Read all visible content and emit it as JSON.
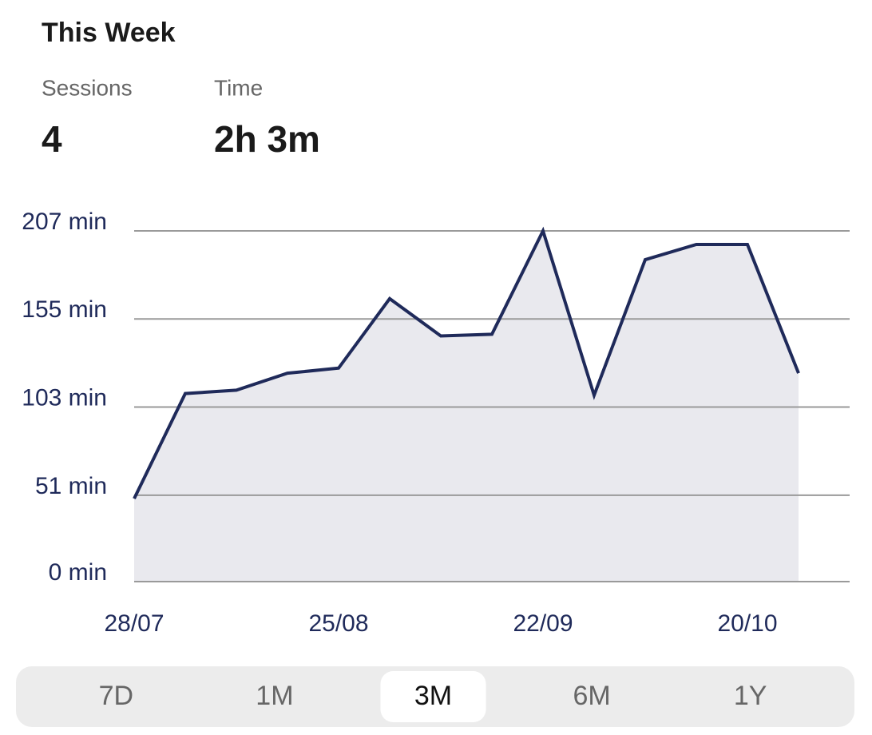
{
  "header": {
    "title": "This Week"
  },
  "stats": [
    {
      "label": "Sessions",
      "value": 4
    },
    {
      "label": "Time",
      "value": "2h 3m"
    }
  ],
  "chart_data": {
    "type": "area",
    "categories": [
      "28/07",
      null,
      null,
      null,
      "25/08",
      null,
      null,
      null,
      "22/09",
      null,
      null,
      null,
      "20/10",
      null
    ],
    "values": [
      49,
      111,
      113,
      123,
      126,
      167,
      145,
      146,
      207,
      110,
      190,
      199,
      199,
      123
    ],
    "color": "#1f2a5a",
    "fill": "#e9e9ee",
    "ylim": [
      0,
      207
    ],
    "yticks": [
      {
        "value": 0,
        "label": "0 min"
      },
      {
        "value": 51,
        "label": "51 min"
      },
      {
        "value": 103,
        "label": "103 min"
      },
      {
        "value": 155,
        "label": "155 min"
      },
      {
        "value": 207,
        "label": "207 min"
      }
    ],
    "grid": true
  },
  "range_selector": {
    "options": [
      "7D",
      "1M",
      "3M",
      "6M",
      "1Y"
    ],
    "selected": 2
  }
}
